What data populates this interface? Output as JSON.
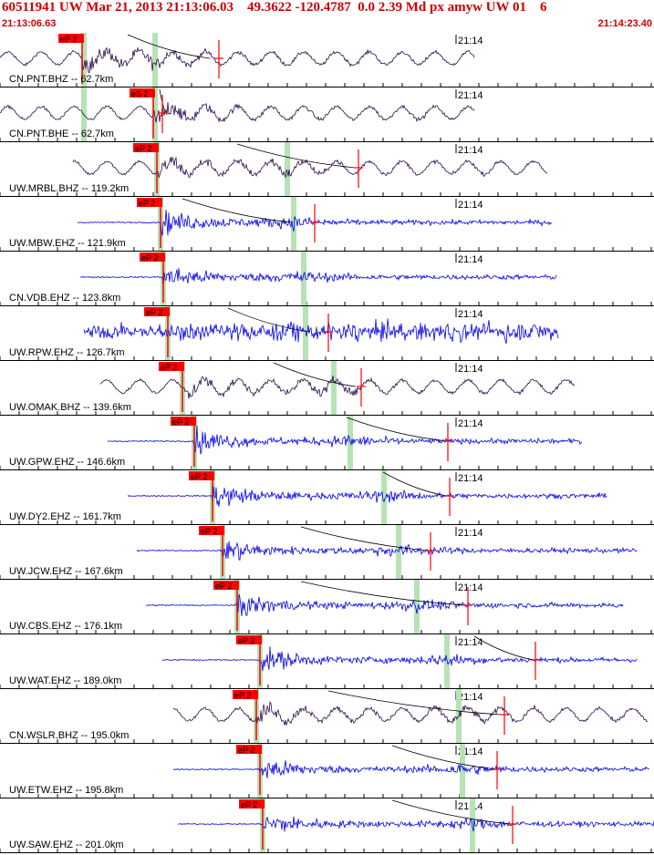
{
  "header": {
    "title": "60511941 UW Mar 21, 2013 21:13:06.03    49.3622 -120.4787  0.0 2.39 Md px amyw UW 01    6",
    "start_time": "21:13:06.63",
    "end_time": "21:14:23.40"
  },
  "minute_label": "21:14",
  "colors": {
    "bb_trace": "#2a0a4a",
    "sp_trace": "#0000ee",
    "pick": "#ff0000",
    "travel_marker": "#b6e3b6",
    "header_text": "#cc0000"
  },
  "traces": [
    {
      "label": "CN.PNT.BHZ -- 62.7km",
      "pick_label": "eP 2",
      "type": "bb"
    },
    {
      "label": "CN.PNT.BHE -- 62.7km",
      "pick_label": "eS 2",
      "type": "bb"
    },
    {
      "label": "UW.MRBL.BHZ -- 119.2km",
      "pick_label": "eP 2",
      "type": "bb"
    },
    {
      "label": "UW.MBW.EHZ -- 121.9km",
      "pick_label": "eP 2",
      "type": "sp"
    },
    {
      "label": "CN.VDB.EHZ -- 123.8km",
      "pick_label": "eP 2",
      "type": "sp"
    },
    {
      "label": "UW.RPW.EHZ -- 126.7km",
      "pick_label": "eP 2",
      "type": "sp"
    },
    {
      "label": "UW.OMAK.BHZ -- 139.6km",
      "pick_label": "eP 2",
      "type": "bb"
    },
    {
      "label": "UW.GPW.EHZ -- 146.6km",
      "pick_label": "eP 2",
      "type": "sp"
    },
    {
      "label": "UW.DY2.EHZ -- 161.7km",
      "pick_label": "eP 2",
      "type": "sp"
    },
    {
      "label": "UW.JCW.EHZ -- 167.6km",
      "pick_label": "eP 2",
      "type": "sp"
    },
    {
      "label": "UW.CBS.EHZ -- 176.1km",
      "pick_label": "eP 2",
      "type": "sp"
    },
    {
      "label": "UW.WAT.EHZ -- 189.0km",
      "pick_label": "eP 2",
      "type": "sp"
    },
    {
      "label": "CN.WSLR.BHZ -- 195.0km",
      "pick_label": "eP 2",
      "type": "bb"
    },
    {
      "label": "UW.ETW.EHZ -- 195.8km",
      "pick_label": "eP 2",
      "type": "sp"
    },
    {
      "label": "UW.SAW.EHZ -- 201.0km",
      "pick_label": "eP 2",
      "type": "sp"
    }
  ]
}
